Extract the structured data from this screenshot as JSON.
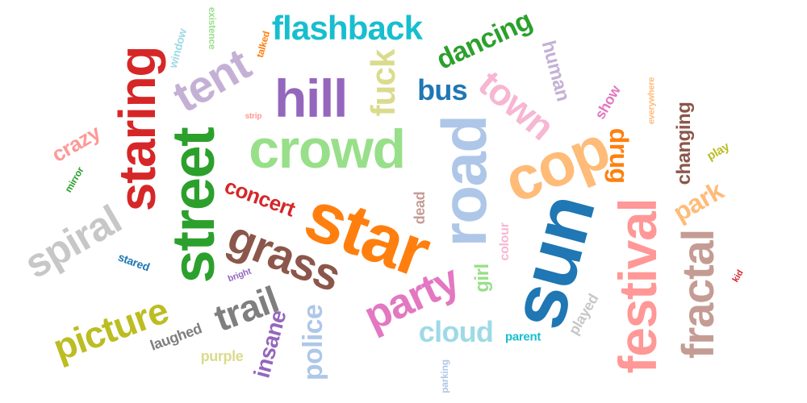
{
  "words": [
    {
      "text": "sun",
      "color": "#1f77b4"
    },
    {
      "text": "star",
      "color": "#ff7f0e"
    },
    {
      "text": "road",
      "color": "#aec7e8"
    },
    {
      "text": "cop",
      "color": "#ffbb78"
    },
    {
      "text": "street",
      "color": "#2ca02c"
    },
    {
      "text": "festival",
      "color": "#ff9896"
    },
    {
      "text": "staring",
      "color": "#d62728"
    },
    {
      "text": "crowd",
      "color": "#98df8a"
    },
    {
      "text": "hill",
      "color": "#9467bd"
    },
    {
      "text": "grass",
      "color": "#8c564b"
    },
    {
      "text": "fractal",
      "color": "#c49c94"
    },
    {
      "text": "tent",
      "color": "#c5b0d5"
    },
    {
      "text": "party",
      "color": "#e377c2"
    },
    {
      "text": "spiral",
      "color": "#c7c7c7"
    },
    {
      "text": "picture",
      "color": "#bcbd22"
    },
    {
      "text": "trail",
      "color": "#7f7f7f"
    },
    {
      "text": "town",
      "color": "#f7b6d2"
    },
    {
      "text": "flashback",
      "color": "#17becf"
    },
    {
      "text": "fuck",
      "color": "#dbdb8d"
    },
    {
      "text": "cloud",
      "color": "#9edae5"
    },
    {
      "text": "police",
      "color": "#aec7e8"
    },
    {
      "text": "bus",
      "color": "#1f77b4"
    },
    {
      "text": "dancing",
      "color": "#2ca02c"
    },
    {
      "text": "drug",
      "color": "#ff7f0e"
    },
    {
      "text": "park",
      "color": "#ffbb78"
    },
    {
      "text": "insane",
      "color": "#9467bd"
    },
    {
      "text": "concert",
      "color": "#d62728"
    },
    {
      "text": "crazy",
      "color": "#ff9896"
    },
    {
      "text": "changing",
      "color": "#8c564b"
    },
    {
      "text": "human",
      "color": "#c5b0d5"
    },
    {
      "text": "girl",
      "color": "#98df8a"
    },
    {
      "text": "laughed",
      "color": "#7f7f7f"
    },
    {
      "text": "show",
      "color": "#e377c2"
    },
    {
      "text": "purple",
      "color": "#dbdb8d"
    },
    {
      "text": "played",
      "color": "#c7c7c7"
    },
    {
      "text": "dead",
      "color": "#c49c94"
    },
    {
      "text": "colour",
      "color": "#f7b6d2"
    },
    {
      "text": "stared",
      "color": "#1f77b4"
    },
    {
      "text": "parent",
      "color": "#17becf"
    },
    {
      "text": "play",
      "color": "#bcbd22"
    },
    {
      "text": "window",
      "color": "#9edae5"
    },
    {
      "text": "existence",
      "color": "#98df8a"
    },
    {
      "text": "talked",
      "color": "#ff7f0e"
    },
    {
      "text": "everywhere",
      "color": "#ffbb78"
    },
    {
      "text": "parking",
      "color": "#aec7e8"
    },
    {
      "text": "mirror",
      "color": "#2ca02c"
    },
    {
      "text": "strip",
      "color": "#ff9896"
    },
    {
      "text": "bright",
      "color": "#9467bd"
    },
    {
      "text": "kid",
      "color": "#d62728"
    }
  ]
}
